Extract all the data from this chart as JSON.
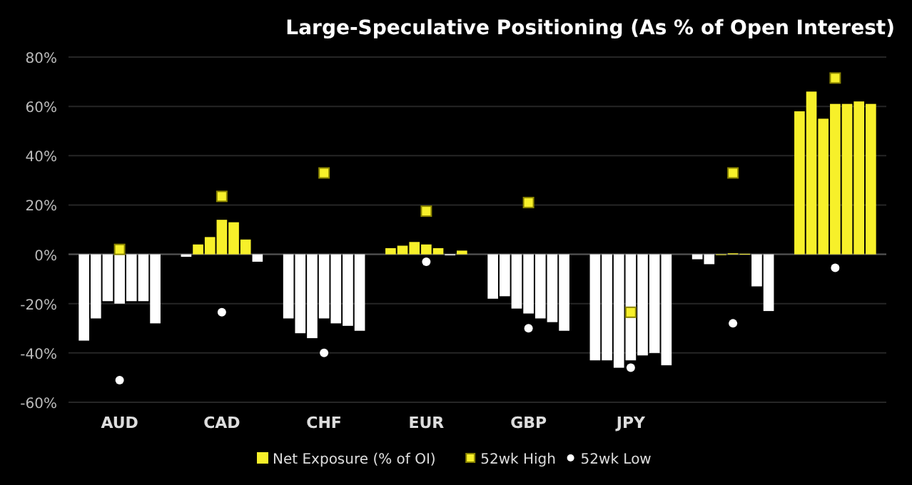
{
  "chart_data": {
    "type": "bar",
    "title": "Large-Speculative Positioning (As % of Open Interest)",
    "categories": [
      "AUD",
      "CAD",
      "CHF",
      "EUR",
      "GBP",
      "JPY",
      null,
      null
    ],
    "series": [
      {
        "name": "Net Exposure (% of OI)",
        "color": "#f7f02a",
        "values": [
          -35,
          -1,
          -26,
          2.5,
          -18,
          -43,
          -2,
          58
        ],
        "colors": [
          "#ffffff",
          "#ffffff",
          "#ffffff",
          "#f7f02a",
          "#ffffff",
          "#ffffff",
          "#ffffff",
          "#f7f02a"
        ]
      },
      {
        "color": "#f7f02a",
        "values": [
          -26,
          4,
          -32,
          3.5,
          -17,
          -43,
          -4,
          66
        ],
        "colors": [
          "#ffffff",
          "#f7f02a",
          "#ffffff",
          "#f7f02a",
          "#ffffff",
          "#ffffff",
          "#ffffff",
          "#f7f02a"
        ]
      },
      {
        "color": "#f7f02a",
        "values": [
          -19,
          7,
          -34,
          5,
          -22,
          -46,
          0,
          55
        ],
        "colors": [
          "#ffffff",
          "#f7f02a",
          "#ffffff",
          "#f7f02a",
          "#ffffff",
          "#ffffff",
          "#f7f02a",
          "#f7f02a"
        ]
      },
      {
        "color": "#f7f02a",
        "values": [
          -20,
          14,
          -26,
          4,
          -24,
          -43,
          0.4,
          61
        ],
        "colors": [
          "#ffffff",
          "#f7f02a",
          "#ffffff",
          "#f7f02a",
          "#ffffff",
          "#ffffff",
          "#f7f02a",
          "#f7f02a"
        ]
      },
      {
        "color": "#f7f02a",
        "values": [
          -19,
          13,
          -28,
          2.5,
          -26,
          -41,
          0.2,
          61
        ],
        "colors": [
          "#ffffff",
          "#f7f02a",
          "#ffffff",
          "#f7f02a",
          "#ffffff",
          "#ffffff",
          "#f7f02a",
          "#f7f02a"
        ]
      },
      {
        "color": "#f7f02a",
        "values": [
          -19,
          6,
          -29,
          -0.4,
          -27.5,
          -40,
          -13,
          62
        ],
        "colors": [
          "#ffffff",
          "#f7f02a",
          "#ffffff",
          "#ffffff",
          "#ffffff",
          "#ffffff",
          "#ffffff",
          "#f7f02a"
        ]
      },
      {
        "color": "#f7f02a",
        "values": [
          -28,
          -3,
          -31,
          1.5,
          -31,
          -45,
          -23,
          61
        ],
        "colors": [
          "#ffffff",
          "#ffffff",
          "#ffffff",
          "#f7f02a",
          "#ffffff",
          "#ffffff",
          "#ffffff",
          "#f7f02a"
        ]
      },
      {
        "type": "scatter",
        "name": "52wk High",
        "color": "#f7f02a",
        "marker": "square",
        "values": [
          2,
          23.5,
          33,
          17.5,
          21,
          -23.5,
          33,
          71.5
        ]
      },
      {
        "type": "scatter",
        "name": "52wk Low",
        "color": "#ffffff",
        "marker": "circle",
        "values": [
          -51,
          -23.5,
          -40,
          -3,
          -30,
          -46,
          -28,
          -5.5
        ]
      }
    ],
    "ylim": [
      -60,
      80
    ],
    "yticks": [
      {
        "value": -60,
        "label": "-60%"
      },
      {
        "value": -40,
        "label": "-40%"
      },
      {
        "value": -20,
        "label": "-20%"
      },
      {
        "value": 0,
        "label": "0%"
      },
      {
        "value": 20,
        "label": "20%"
      },
      {
        "value": 40,
        "label": "40%"
      },
      {
        "value": 60,
        "label": "60%"
      },
      {
        "value": 80,
        "label": "80%"
      }
    ],
    "grid": "y",
    "legend": "bottom"
  }
}
